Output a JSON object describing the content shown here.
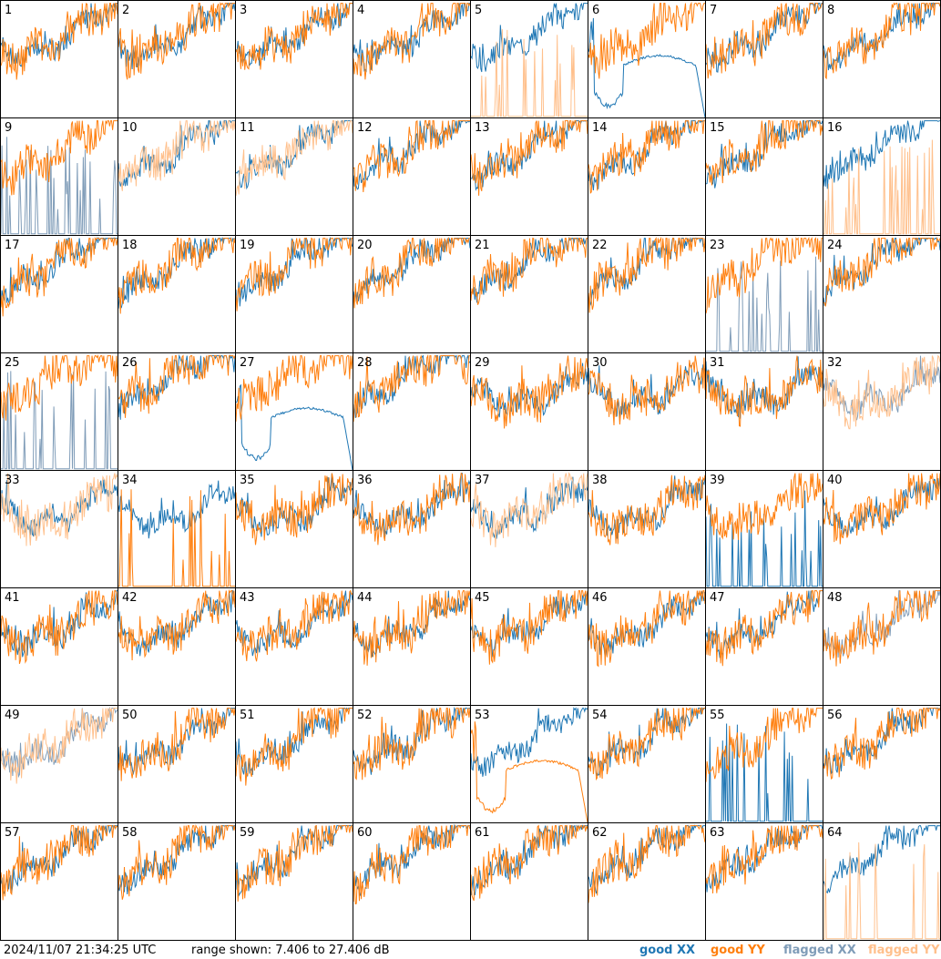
{
  "chart_data": {
    "type": "line",
    "panel_count": 64,
    "columns": 8,
    "rows": 8,
    "panels": [
      {
        "id": "1",
        "xx": "good",
        "yy": "good"
      },
      {
        "id": "2",
        "xx": "good",
        "yy": "good"
      },
      {
        "id": "3",
        "xx": "good",
        "yy": "good"
      },
      {
        "id": "4",
        "xx": "good",
        "yy": "good"
      },
      {
        "id": "5",
        "xx": "good",
        "yy": "flagged",
        "yy_shape": "spikes"
      },
      {
        "id": "6",
        "xx": "good",
        "yy": "good",
        "xx_shape": "dip"
      },
      {
        "id": "7",
        "xx": "good",
        "yy": "good"
      },
      {
        "id": "8",
        "xx": "good",
        "yy": "good"
      },
      {
        "id": "9",
        "xx": "flagged",
        "yy": "good",
        "xx_shape": "spikes"
      },
      {
        "id": "10",
        "xx": "good",
        "yy": "flagged"
      },
      {
        "id": "11",
        "xx": "good",
        "yy": "flagged"
      },
      {
        "id": "12",
        "xx": "good",
        "yy": "good"
      },
      {
        "id": "13",
        "xx": "good",
        "yy": "good"
      },
      {
        "id": "14",
        "xx": "good",
        "yy": "good"
      },
      {
        "id": "15",
        "xx": "good",
        "yy": "good"
      },
      {
        "id": "16",
        "xx": "good",
        "yy": "flagged",
        "yy_shape": "spikes"
      },
      {
        "id": "17",
        "xx": "good",
        "yy": "good"
      },
      {
        "id": "18",
        "xx": "good",
        "yy": "good"
      },
      {
        "id": "19",
        "xx": "good",
        "yy": "good"
      },
      {
        "id": "20",
        "xx": "good",
        "yy": "good"
      },
      {
        "id": "21",
        "xx": "good",
        "yy": "good"
      },
      {
        "id": "22",
        "xx": "good",
        "yy": "good"
      },
      {
        "id": "23",
        "xx": "flagged",
        "yy": "good",
        "xx_shape": "spikes"
      },
      {
        "id": "24",
        "xx": "good",
        "yy": "good"
      },
      {
        "id": "25",
        "xx": "flagged",
        "yy": "good",
        "xx_shape": "spikes"
      },
      {
        "id": "26",
        "xx": "good",
        "yy": "good"
      },
      {
        "id": "27",
        "xx": "good",
        "yy": "good",
        "xx_shape": "dip"
      },
      {
        "id": "28",
        "xx": "good",
        "yy": "good"
      },
      {
        "id": "29",
        "xx": "good",
        "yy": "good"
      },
      {
        "id": "30",
        "xx": "good",
        "yy": "good"
      },
      {
        "id": "31",
        "xx": "good",
        "yy": "good"
      },
      {
        "id": "32",
        "xx": "flagged",
        "yy": "flagged"
      },
      {
        "id": "33",
        "xx": "good",
        "yy": "flagged"
      },
      {
        "id": "34",
        "xx": "good",
        "yy": "good",
        "yy_shape": "spikes"
      },
      {
        "id": "35",
        "xx": "good",
        "yy": "good"
      },
      {
        "id": "36",
        "xx": "good",
        "yy": "good"
      },
      {
        "id": "37",
        "xx": "good",
        "yy": "flagged"
      },
      {
        "id": "38",
        "xx": "good",
        "yy": "good"
      },
      {
        "id": "39",
        "xx": "good",
        "yy": "good",
        "xx_shape": "spikes"
      },
      {
        "id": "40",
        "xx": "good",
        "yy": "good"
      },
      {
        "id": "41",
        "xx": "good",
        "yy": "good"
      },
      {
        "id": "42",
        "xx": "good",
        "yy": "good"
      },
      {
        "id": "43",
        "xx": "good",
        "yy": "good"
      },
      {
        "id": "44",
        "xx": "good",
        "yy": "good"
      },
      {
        "id": "45",
        "xx": "good",
        "yy": "good"
      },
      {
        "id": "46",
        "xx": "good",
        "yy": "good"
      },
      {
        "id": "47",
        "xx": "good",
        "yy": "good"
      },
      {
        "id": "48",
        "xx": "flagged",
        "yy": "good"
      },
      {
        "id": "49",
        "xx": "flagged",
        "yy": "flagged"
      },
      {
        "id": "50",
        "xx": "good",
        "yy": "good"
      },
      {
        "id": "51",
        "xx": "good",
        "yy": "good"
      },
      {
        "id": "52",
        "xx": "good",
        "yy": "good"
      },
      {
        "id": "53",
        "xx": "good",
        "yy": "good",
        "yy_shape": "dip"
      },
      {
        "id": "54",
        "xx": "good",
        "yy": "good"
      },
      {
        "id": "55",
        "xx": "good",
        "yy": "good",
        "xx_shape": "spikes"
      },
      {
        "id": "56",
        "xx": "good",
        "yy": "good"
      },
      {
        "id": "57",
        "xx": "good",
        "yy": "good"
      },
      {
        "id": "58",
        "xx": "good",
        "yy": "good"
      },
      {
        "id": "59",
        "xx": "good",
        "yy": "good"
      },
      {
        "id": "60",
        "xx": "good",
        "yy": "good"
      },
      {
        "id": "61",
        "xx": "good",
        "yy": "good"
      },
      {
        "id": "62",
        "xx": "good",
        "yy": "good"
      },
      {
        "id": "63",
        "xx": "good",
        "yy": "good"
      },
      {
        "id": "64",
        "xx": "good",
        "yy": "flagged",
        "yy_shape": "spikes"
      }
    ],
    "range_db": [
      7.406,
      27.406
    ],
    "colors": {
      "good_xx": "#1f77b4",
      "good_yy": "#ff7f0e",
      "flagged_xx": "#7f9cb8",
      "flagged_yy": "#ffc08c"
    },
    "legend_position": "bottom-right"
  },
  "footer": {
    "timestamp": "2024/11/07 21:34:25 UTC",
    "range_text": "range shown: 7.406 to 27.406 dB"
  },
  "legend": {
    "good_xx": "good XX",
    "good_yy": "good YY",
    "flagged_xx": "flagged XX",
    "flagged_yy": "flagged YY"
  }
}
